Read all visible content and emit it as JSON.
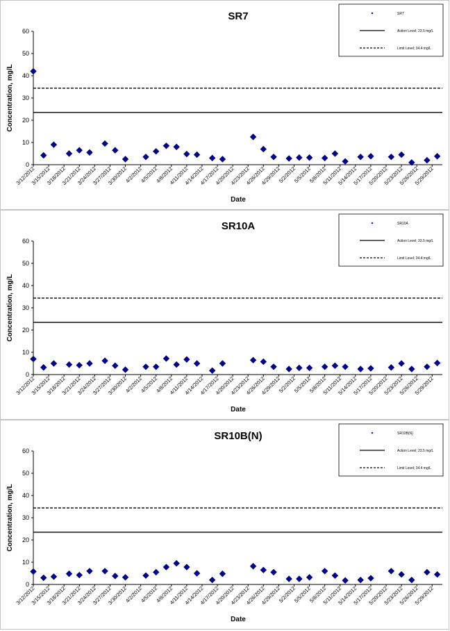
{
  "chart_data": [
    {
      "type": "scatter",
      "title": "SR7",
      "xlabel": "Date",
      "ylabel": "Concentration, mg/L",
      "ylim": [
        0,
        60
      ],
      "yticks": [
        0,
        10,
        20,
        30,
        40,
        50,
        60
      ],
      "grid": false,
      "legend_position": "top-right",
      "x_tick_labels": [
        "3/12/2012",
        "3/15/2012",
        "3/18/2012",
        "3/21/2012",
        "3/24/2012",
        "3/27/2012",
        "3/30/2012",
        "4/2/2012",
        "4/5/2012",
        "4/8/2012",
        "4/11/2012",
        "4/14/2012",
        "4/17/2012",
        "4/20/2012",
        "4/23/2012",
        "4/26/2012",
        "4/29/2012",
        "5/2/2012",
        "5/5/2012",
        "5/8/2012",
        "5/11/2012",
        "5/14/2012",
        "5/17/2012",
        "5/20/2012",
        "5/23/2012",
        "5/26/2012",
        "5/29/2012"
      ],
      "series": [
        {
          "name": "SR7",
          "marker": "diamond",
          "color": "#00008b",
          "x": [
            "3/12/2012",
            "3/14/2012",
            "3/16/2012",
            "3/19/2012",
            "3/21/2012",
            "3/23/2012",
            "3/26/2012",
            "3/28/2012",
            "3/30/2012",
            "4/3/2012",
            "4/5/2012",
            "4/7/2012",
            "4/9/2012",
            "4/11/2012",
            "4/13/2012",
            "4/16/2012",
            "4/18/2012",
            "4/24/2012",
            "4/26/2012",
            "4/28/2012",
            "5/1/2012",
            "5/3/2012",
            "5/5/2012",
            "5/8/2012",
            "5/10/2012",
            "5/12/2012",
            "5/15/2012",
            "5/17/2012",
            "5/21/2012",
            "5/23/2012",
            "5/25/2012",
            "5/28/2012",
            "5/30/2012"
          ],
          "values": [
            42,
            4.2,
            9,
            5,
            6.5,
            5.5,
            9.5,
            6.5,
            2.5,
            3.5,
            6,
            8.5,
            8,
            4.8,
            4.5,
            3,
            2.5,
            12.5,
            7,
            3.5,
            2.8,
            3.2,
            3.2,
            3,
            5,
            1.5,
            3.5,
            3.8,
            3.5,
            4.5,
            1,
            2,
            3.8
          ]
        },
        {
          "name": "Action Level; 23.5 mg/L",
          "line": "solid",
          "value": 23.5
        },
        {
          "name": "Limit Level; 34.4 mg/L",
          "line": "dashed",
          "value": 34.4
        }
      ]
    },
    {
      "type": "scatter",
      "title": "SR10A",
      "xlabel": "Date",
      "ylabel": "Concentration, mg/L",
      "ylim": [
        0,
        60
      ],
      "yticks": [
        0,
        10,
        20,
        30,
        40,
        50,
        60
      ],
      "grid": false,
      "legend_position": "top-right",
      "x_tick_labels": [
        "3/12/2012",
        "3/15/2012",
        "3/18/2012",
        "3/21/2012",
        "3/24/2012",
        "3/27/2012",
        "3/30/2012",
        "4/2/2012",
        "4/5/2012",
        "4/8/2012",
        "4/11/2012",
        "4/14/2012",
        "4/17/2012",
        "4/20/2012",
        "4/23/2012",
        "4/26/2012",
        "4/29/2012",
        "5/2/2012",
        "5/5/2012",
        "5/8/2012",
        "5/11/2012",
        "5/14/2012",
        "5/17/2012",
        "5/20/2012",
        "5/23/2012",
        "5/26/2012",
        "5/29/2012"
      ],
      "series": [
        {
          "name": "SR10A",
          "marker": "diamond",
          "color": "#00008b",
          "x": [
            "3/12/2012",
            "3/14/2012",
            "3/16/2012",
            "3/19/2012",
            "3/21/2012",
            "3/23/2012",
            "3/26/2012",
            "3/28/2012",
            "3/30/2012",
            "4/3/2012",
            "4/5/2012",
            "4/7/2012",
            "4/9/2012",
            "4/11/2012",
            "4/13/2012",
            "4/16/2012",
            "4/18/2012",
            "4/24/2012",
            "4/26/2012",
            "4/28/2012",
            "5/1/2012",
            "5/3/2012",
            "5/5/2012",
            "5/8/2012",
            "5/10/2012",
            "5/12/2012",
            "5/15/2012",
            "5/17/2012",
            "5/21/2012",
            "5/23/2012",
            "5/25/2012",
            "5/28/2012",
            "5/30/2012"
          ],
          "values": [
            7,
            3.2,
            5,
            4.5,
            4.2,
            5,
            6.2,
            4,
            2.2,
            3.5,
            3.5,
            7.2,
            4.5,
            6.8,
            5,
            1.8,
            5,
            6.5,
            5.8,
            3.5,
            2.5,
            3,
            3,
            3.5,
            4,
            3.5,
            2.5,
            2.8,
            3.2,
            5,
            2.5,
            3.5,
            5.2
          ]
        },
        {
          "name": "Action Level; 23.5 mg/L",
          "line": "solid",
          "value": 23.5
        },
        {
          "name": "Limit Level; 34.4 mg/L",
          "line": "dashed",
          "value": 34.4
        }
      ]
    },
    {
      "type": "scatter",
      "title": "SR10B(N)",
      "xlabel": "Date",
      "ylabel": "Concentration, mg/L",
      "ylim": [
        0,
        60
      ],
      "yticks": [
        0,
        10,
        20,
        30,
        40,
        50,
        60
      ],
      "grid": false,
      "legend_position": "top-right",
      "x_tick_labels": [
        "3/12/2012",
        "3/15/2012",
        "3/18/2012",
        "3/21/2012",
        "3/24/2012",
        "3/27/2012",
        "3/30/2012",
        "4/2/2012",
        "4/5/2012",
        "4/8/2012",
        "4/11/2012",
        "4/14/2012",
        "4/17/2012",
        "4/20/2012",
        "4/23/2012",
        "4/26/2012",
        "4/29/2012",
        "5/2/2012",
        "5/5/2012",
        "5/8/2012",
        "5/11/2012",
        "5/14/2012",
        "5/17/2012",
        "5/20/2012",
        "5/23/2012",
        "5/26/2012",
        "5/29/2012"
      ],
      "series": [
        {
          "name": "SR10B(N)",
          "marker": "diamond",
          "color": "#00008b",
          "x": [
            "3/12/2012",
            "3/14/2012",
            "3/16/2012",
            "3/19/2012",
            "3/21/2012",
            "3/23/2012",
            "3/26/2012",
            "3/28/2012",
            "3/30/2012",
            "4/3/2012",
            "4/5/2012",
            "4/7/2012",
            "4/9/2012",
            "4/11/2012",
            "4/13/2012",
            "4/16/2012",
            "4/18/2012",
            "4/24/2012",
            "4/26/2012",
            "4/28/2012",
            "5/1/2012",
            "5/3/2012",
            "5/5/2012",
            "5/8/2012",
            "5/10/2012",
            "5/12/2012",
            "5/15/2012",
            "5/17/2012",
            "5/21/2012",
            "5/23/2012",
            "5/25/2012",
            "5/28/2012",
            "5/30/2012"
          ],
          "values": [
            5.8,
            3,
            3.5,
            4.8,
            4.2,
            6,
            6,
            3.8,
            3.2,
            4,
            5.5,
            7.8,
            9.5,
            7.8,
            5,
            2,
            4.8,
            8.2,
            6.5,
            5.5,
            2.5,
            2.5,
            3.2,
            6,
            4,
            1.8,
            2,
            2.8,
            6,
            4.5,
            2,
            5.5,
            4.5
          ]
        },
        {
          "name": "Action Level; 23.5 mg/L",
          "line": "solid",
          "value": 23.5
        },
        {
          "name": "Limit Level; 34.4 mg/L",
          "line": "dashed",
          "value": 34.4
        }
      ]
    }
  ]
}
